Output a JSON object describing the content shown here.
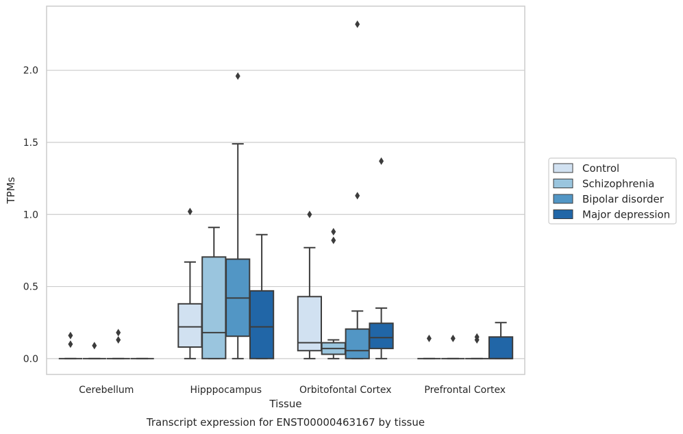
{
  "chart_data": {
    "type": "box",
    "caption": "Transcript expression for ENST00000463167 by tissue",
    "xlabel": "Tissue",
    "ylabel": "TPMs",
    "ylim": [
      -0.11,
      2.445
    ],
    "yticks": [
      "0.0",
      "0.5",
      "1.0",
      "1.5",
      "2.0"
    ],
    "grid": "horizontal",
    "legend_position": "right-outside",
    "categories": [
      "Cerebellum",
      "Hipppocampus",
      "Orbitofontal Cortex",
      "Prefrontal Cortex"
    ],
    "series": [
      {
        "name": "Control",
        "color": "#d1e1f1",
        "boxes": [
          {
            "q1": 0,
            "median": 0,
            "q3": 0,
            "whislo": 0,
            "whishi": 0,
            "fliers": [
              0.16,
              0.1
            ]
          },
          {
            "q1": 0.08,
            "median": 0.22,
            "q3": 0.38,
            "whislo": 0,
            "whishi": 0.67,
            "fliers": [
              1.02
            ]
          },
          {
            "q1": 0.055,
            "median": 0.11,
            "q3": 0.43,
            "whislo": 0,
            "whishi": 0.77,
            "fliers": [
              1.0
            ]
          },
          {
            "q1": 0,
            "median": 0,
            "q3": 0,
            "whislo": 0,
            "whishi": 0,
            "fliers": [
              0.14
            ]
          }
        ]
      },
      {
        "name": "Schizophrenia",
        "color": "#9ac5de",
        "boxes": [
          {
            "q1": 0,
            "median": 0,
            "q3": 0,
            "whislo": 0,
            "whishi": 0,
            "fliers": [
              0.09
            ]
          },
          {
            "q1": 0,
            "median": 0.18,
            "q3": 0.705,
            "whislo": 0,
            "whishi": 0.91,
            "fliers": []
          },
          {
            "q1": 0.03,
            "median": 0.07,
            "q3": 0.11,
            "whislo": 0,
            "whishi": 0.13,
            "fliers": [
              0.88,
              0.82
            ]
          },
          {
            "q1": 0,
            "median": 0,
            "q3": 0,
            "whislo": 0,
            "whishi": 0,
            "fliers": [
              0.14
            ]
          }
        ]
      },
      {
        "name": "Bipolar disorder",
        "color": "#5296c5",
        "boxes": [
          {
            "q1": 0,
            "median": 0,
            "q3": 0,
            "whislo": 0,
            "whishi": 0,
            "fliers": [
              0.18,
              0.13
            ]
          },
          {
            "q1": 0.155,
            "median": 0.42,
            "q3": 0.69,
            "whislo": 0,
            "whishi": 1.49,
            "fliers": [
              1.96
            ]
          },
          {
            "q1": 0,
            "median": 0.055,
            "q3": 0.205,
            "whislo": 0,
            "whishi": 0.33,
            "fliers": [
              2.32,
              1.13
            ]
          },
          {
            "q1": 0,
            "median": 0,
            "q3": 0,
            "whislo": 0,
            "whishi": 0,
            "fliers": [
              0.15,
              0.13
            ]
          }
        ]
      },
      {
        "name": "Major depression",
        "color": "#2166a7",
        "boxes": [
          {
            "q1": 0,
            "median": 0,
            "q3": 0,
            "whislo": 0,
            "whishi": 0,
            "fliers": []
          },
          {
            "q1": 0,
            "median": 0.22,
            "q3": 0.47,
            "whislo": 0,
            "whishi": 0.86,
            "fliers": []
          },
          {
            "q1": 0.07,
            "median": 0.145,
            "q3": 0.245,
            "whislo": 0,
            "whishi": 0.35,
            "fliers": [
              1.37
            ]
          },
          {
            "q1": 0,
            "median": 0,
            "q3": 0.15,
            "whislo": 0,
            "whishi": 0.25,
            "fliers": []
          }
        ]
      }
    ]
  }
}
